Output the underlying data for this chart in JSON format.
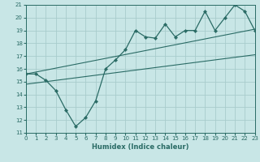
{
  "xlabel": "Humidex (Indice chaleur)",
  "xlim": [
    0,
    23
  ],
  "ylim": [
    11,
    21
  ],
  "xticks": [
    0,
    1,
    2,
    3,
    4,
    5,
    6,
    7,
    8,
    9,
    10,
    11,
    12,
    13,
    14,
    15,
    16,
    17,
    18,
    19,
    20,
    21,
    22,
    23
  ],
  "yticks": [
    11,
    12,
    13,
    14,
    15,
    16,
    17,
    18,
    19,
    20,
    21
  ],
  "bg_color": "#c8e6e6",
  "grid_color": "#a8cccc",
  "line_color": "#2a6b65",
  "line1_x": [
    0,
    1,
    2,
    3,
    4,
    5,
    6,
    7,
    8,
    9,
    10,
    11,
    12,
    13,
    14,
    15,
    16,
    17,
    18,
    19,
    20,
    21,
    22,
    23
  ],
  "line1_y": [
    15.6,
    15.6,
    15.1,
    14.3,
    12.8,
    11.5,
    12.2,
    13.5,
    16.0,
    16.7,
    17.5,
    19.0,
    18.5,
    18.4,
    19.5,
    18.5,
    19.0,
    19.0,
    20.5,
    19.0,
    20.0,
    21.0,
    20.5,
    19.0
  ],
  "line2_x": [
    0,
    23
  ],
  "line2_y": [
    15.6,
    19.1
  ],
  "line3_x": [
    0,
    23
  ],
  "line3_y": [
    14.8,
    17.1
  ]
}
